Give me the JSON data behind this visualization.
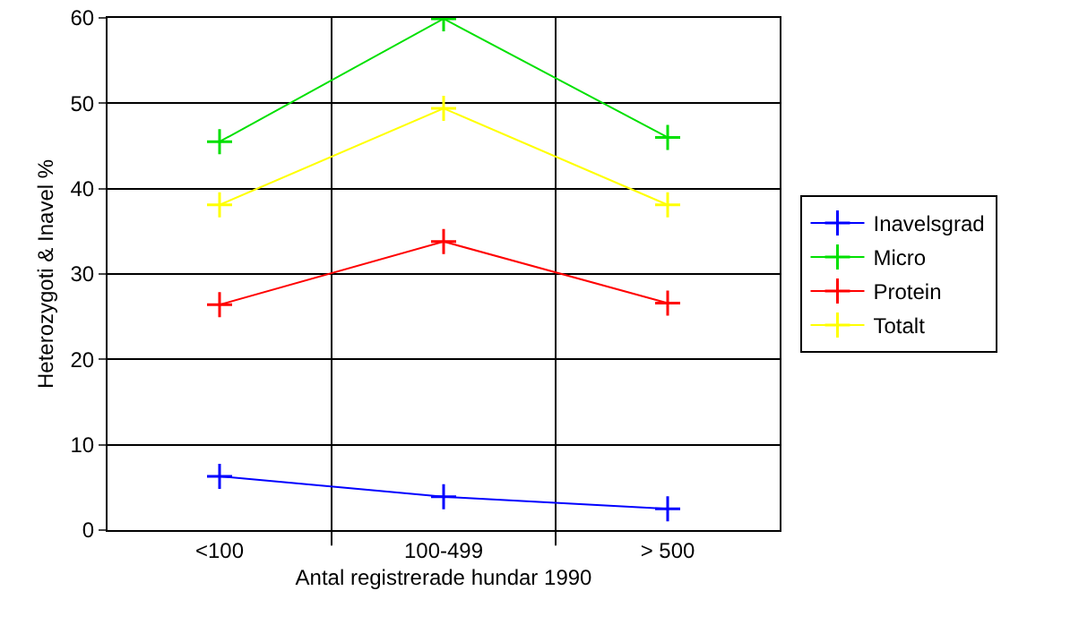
{
  "chart_data": {
    "type": "line",
    "xlabel": "Antal registrerade hundar 1990",
    "ylabel": "Heterozygoti & Inavel %",
    "categories": [
      "<100",
      "100-499",
      "> 500"
    ],
    "series": [
      {
        "name": "Inavelsgrad",
        "color": "#0000ff",
        "values": [
          6.3,
          3.9,
          2.5
        ]
      },
      {
        "name": "Micro",
        "color": "#00e000",
        "values": [
          45.5,
          59.9,
          46.0
        ]
      },
      {
        "name": "Protein",
        "color": "#ff0000",
        "values": [
          26.4,
          33.8,
          26.6
        ]
      },
      {
        "name": "Totalt",
        "color": "#ffff00",
        "values": [
          38.1,
          49.4,
          38.1
        ]
      }
    ],
    "ylim": [
      0,
      60
    ],
    "yticks": [
      0,
      10,
      20,
      30,
      40,
      50,
      60
    ],
    "grid": true,
    "legend": "right",
    "marker": "cross",
    "line_style": "solid"
  }
}
